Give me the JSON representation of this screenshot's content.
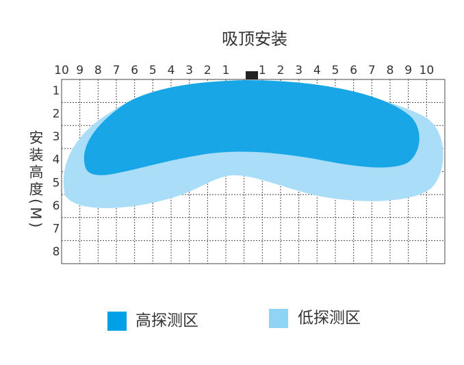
{
  "title": "吸顶安装",
  "x_labels_left": [
    "10",
    "9",
    "8",
    "7",
    "6",
    "5",
    "4",
    "3",
    "2",
    "1"
  ],
  "x_labels_right": [
    "1",
    "2",
    "3",
    "4",
    "5",
    "6",
    "7",
    "8",
    "9",
    "10"
  ],
  "y_labels": [
    "1",
    "2",
    "3",
    "4",
    "5",
    "6",
    "7",
    "8"
  ],
  "y_axis_label": "安装高度(M)",
  "legend": [
    {
      "label": "高探测区"
    },
    {
      "label": "低探测区"
    }
  ]
}
